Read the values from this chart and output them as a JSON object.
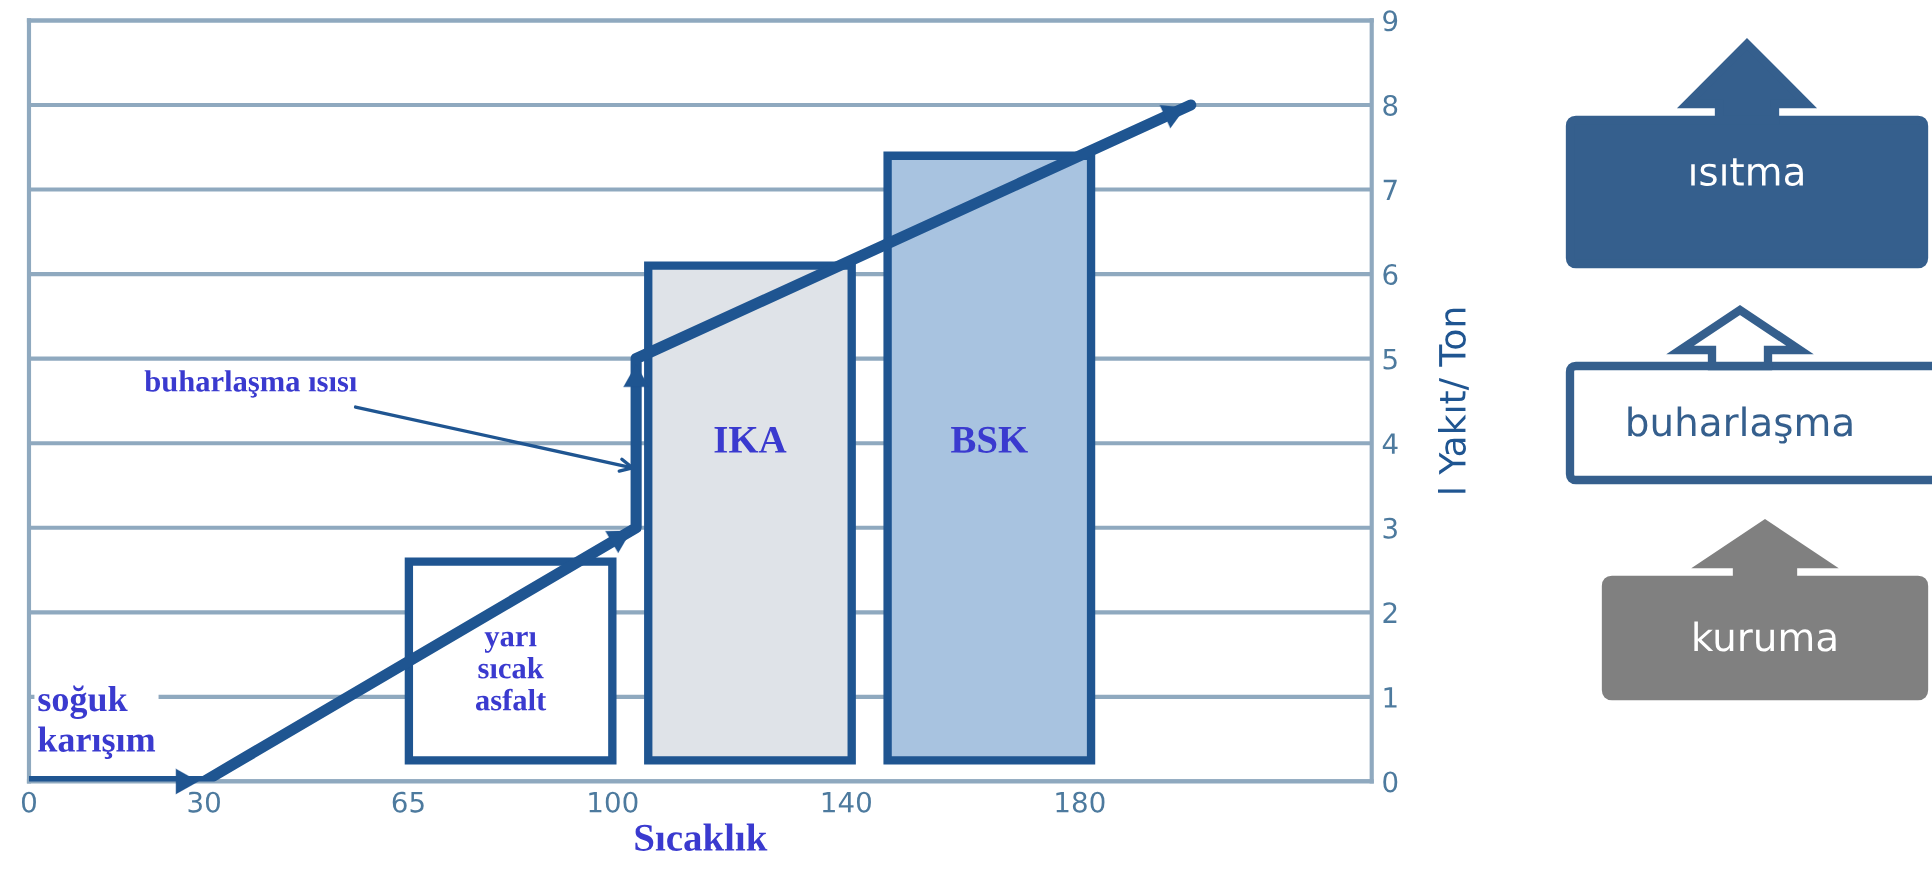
{
  "chart_data": {
    "type": "line",
    "xlabel": "Sıcaklık",
    "ylabel": "l Yakıt/ Ton",
    "xlim": [
      0,
      230
    ],
    "xticks": [
      0,
      30,
      65,
      100,
      140,
      180
    ],
    "ylim": [
      0,
      9
    ],
    "yticks": [
      0,
      1,
      2,
      3,
      4,
      5,
      6,
      7,
      8,
      9
    ],
    "grid": "y",
    "series": [
      {
        "color": "#1f5591",
        "x": [
          0,
          30,
          104,
          104,
          199
        ],
        "values": [
          0,
          0,
          3,
          5,
          8
        ]
      },
      {
        "type": "bar",
        "colors": [
          "#ffffff",
          "#dfe3e8",
          "#a8c3e0"
        ],
        "x": [
          82.5,
          123.5,
          164.5
        ],
        "base": [
          0.25,
          0.25,
          0.25
        ],
        "values": [
          2.35,
          5.85,
          7.15
        ]
      }
    ],
    "annotations": [
      {
        "text": "soğuk karışım",
        "x": 0,
        "y": 0
      },
      {
        "text": "buharlaşma ısısı",
        "x": 104,
        "y": 3.7
      },
      "yarı sıcak asfalt",
      "IKA",
      "BSK",
      "ısıtma",
      "buharlaşma",
      "kuruma"
    ]
  }
}
